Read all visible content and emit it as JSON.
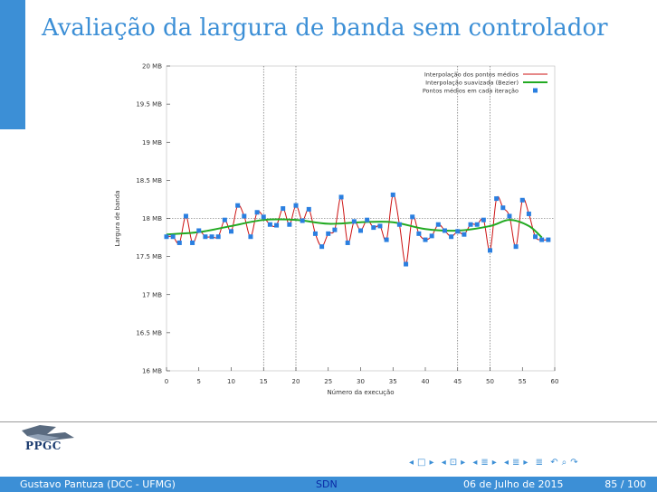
{
  "slide": {
    "title": "Avaliação da largura de banda sem controlador"
  },
  "footer": {
    "author": "Gustavo Pantuza (DCC - UFMG)",
    "section": "SDN",
    "date": "06 de Julho de 2015",
    "page": "85 / 100"
  },
  "logo": {
    "text": "PPGC"
  },
  "nav_icons": [
    "frame-prev-icon",
    "frame-next-icon",
    "subsection-prev-icon",
    "subsection-next-icon",
    "section-prev-icon",
    "section-next-icon",
    "slide-prev-icon",
    "slide-next-icon",
    "toc-icon",
    "search-icon",
    "back-icon",
    "forward-icon"
  ],
  "colors": {
    "accent": "#3c8fd6",
    "interp": "#cc1111",
    "smooth": "#22aa22",
    "points": "#2a7fe0"
  },
  "chart_data": {
    "type": "line",
    "xlabel": "Número da execução",
    "ylabel": "Largura de banda",
    "xlim": [
      0,
      60
    ],
    "ylim": [
      16,
      20
    ],
    "x_ticks": [
      0,
      5,
      10,
      15,
      20,
      25,
      30,
      35,
      40,
      45,
      50,
      55,
      60
    ],
    "y_ticks": [
      {
        "value": 16,
        "label": "16 MB"
      },
      {
        "value": 16.5,
        "label": "16.5 MB"
      },
      {
        "value": 17,
        "label": "17 MB"
      },
      {
        "value": 17.5,
        "label": "17.5 MB"
      },
      {
        "value": 18,
        "label": "18 MB"
      },
      {
        "value": 18.5,
        "label": "18.5 MB"
      },
      {
        "value": 19,
        "label": "19 MB"
      },
      {
        "value": 19.5,
        "label": "19.5 MB"
      },
      {
        "value": 20,
        "label": "20 MB"
      }
    ],
    "vertical_lines": [
      15,
      20,
      45,
      50
    ],
    "reference_y": 18,
    "legend": [
      "Interpolação dos pontos médios",
      "Interpolação suavizada (Bezier)",
      "Pontos médios em cada iteração"
    ],
    "series": [
      {
        "name": "Pontos médios em cada iteração",
        "x": [
          0,
          1,
          2,
          3,
          4,
          5,
          6,
          7,
          8,
          9,
          10,
          11,
          12,
          13,
          14,
          15,
          16,
          17,
          18,
          19,
          20,
          21,
          22,
          23,
          24,
          25,
          26,
          27,
          28,
          29,
          30,
          31,
          32,
          33,
          34,
          35,
          36,
          37,
          38,
          39,
          40,
          41,
          42,
          43,
          44,
          45,
          46,
          47,
          48,
          49,
          50,
          51,
          52,
          53,
          54,
          55,
          56,
          57,
          58,
          59
        ],
        "y": [
          17.76,
          17.76,
          17.68,
          18.03,
          17.68,
          17.84,
          17.76,
          17.76,
          17.76,
          17.98,
          17.83,
          18.17,
          18.03,
          17.76,
          18.08,
          18.02,
          17.92,
          17.91,
          18.13,
          17.92,
          18.17,
          17.97,
          18.12,
          17.8,
          17.63,
          17.8,
          17.85,
          18.28,
          17.68,
          17.96,
          17.84,
          17.98,
          17.88,
          17.9,
          17.72,
          18.31,
          17.92,
          17.4,
          18.02,
          17.8,
          17.72,
          17.77,
          17.92,
          17.84,
          17.76,
          17.83,
          17.79,
          17.92,
          17.92,
          17.98,
          17.58,
          18.26,
          18.14,
          18.03,
          17.63,
          18.24,
          18.06,
          17.76,
          17.72,
          17.72
        ]
      },
      {
        "name": "Interpolação suavizada (Bezier)",
        "x": [
          0,
          5,
          10,
          15,
          20,
          25,
          30,
          35,
          40,
          45,
          50,
          53,
          56,
          58
        ],
        "y": [
          17.79,
          17.82,
          17.9,
          17.98,
          17.98,
          17.93,
          17.95,
          17.95,
          17.86,
          17.84,
          17.9,
          17.98,
          17.9,
          17.75
        ]
      }
    ]
  }
}
